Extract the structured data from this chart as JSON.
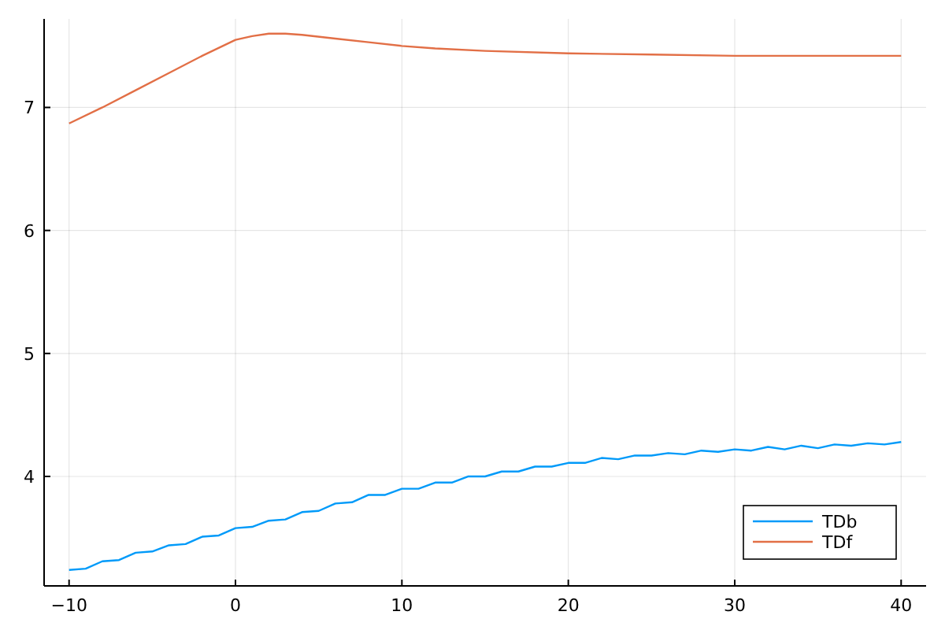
{
  "chart_data": {
    "type": "line",
    "xlim": [
      -11.5,
      41.5
    ],
    "ylim": [
      3.11,
      7.72
    ],
    "xticks": [
      {
        "value": -10,
        "label": "−10"
      },
      0,
      10,
      20,
      30,
      40
    ],
    "yticks": [
      4,
      5,
      6,
      7
    ],
    "grid": true,
    "legend": "bottom right",
    "series": [
      {
        "name": "TDb",
        "color": "#009af9",
        "x": [
          -10,
          -9,
          -8,
          -7,
          -6,
          -5,
          -4,
          -3,
          -2,
          -1,
          0,
          1,
          2,
          3,
          4,
          5,
          6,
          7,
          8,
          9,
          10,
          11,
          12,
          13,
          14,
          15,
          16,
          17,
          18,
          19,
          20,
          21,
          22,
          23,
          24,
          25,
          26,
          27,
          28,
          29,
          30,
          31,
          32,
          33,
          34,
          35,
          36,
          37,
          38,
          39,
          40
        ],
        "values": [
          3.24,
          3.25,
          3.31,
          3.32,
          3.38,
          3.39,
          3.44,
          3.45,
          3.51,
          3.52,
          3.58,
          3.59,
          3.64,
          3.65,
          3.71,
          3.72,
          3.78,
          3.79,
          3.85,
          3.85,
          3.9,
          3.9,
          3.95,
          3.95,
          4.0,
          4.0,
          4.04,
          4.04,
          4.08,
          4.08,
          4.11,
          4.11,
          4.15,
          4.14,
          4.17,
          4.17,
          4.19,
          4.18,
          4.21,
          4.2,
          4.22,
          4.21,
          4.24,
          4.22,
          4.25,
          4.23,
          4.26,
          4.25,
          4.27,
          4.26,
          4.28
        ]
      },
      {
        "name": "TDf",
        "color": "#e26f46",
        "x": [
          -10,
          -8,
          -6,
          -4,
          -2,
          0,
          1,
          2,
          3,
          4,
          6,
          8,
          10,
          12,
          15,
          20,
          25,
          30,
          35,
          40
        ],
        "values": [
          6.87,
          7.0,
          7.14,
          7.28,
          7.42,
          7.55,
          7.58,
          7.6,
          7.6,
          7.59,
          7.56,
          7.53,
          7.5,
          7.48,
          7.46,
          7.44,
          7.43,
          7.42,
          7.42,
          7.42
        ]
      }
    ]
  }
}
